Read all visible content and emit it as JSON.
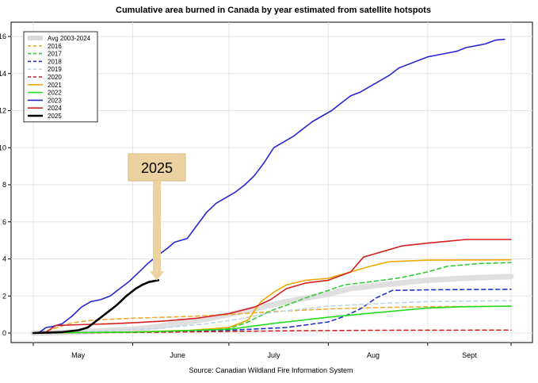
{
  "chart_data": {
    "type": "line",
    "title": "Cumulative area burned in Canada by year estimated from satellite hotspots",
    "source": "Source: Canadian Wildland Fire Information System",
    "xlabel": "",
    "ylabel": "",
    "x_unit": "day of year",
    "xlim": [
      121,
      270
    ],
    "ylim": [
      0,
      16
    ],
    "y_ticks": [
      0,
      2,
      4,
      6,
      8,
      10,
      12,
      14,
      16
    ],
    "y_tick_labels": [
      "0",
      "2",
      "4",
      "6",
      "8",
      "10",
      "12",
      "14",
      "16"
    ],
    "x_grid": [
      121,
      152,
      182,
      213,
      244,
      270
    ],
    "x_labels": [
      {
        "label": "May",
        "x": 135
      },
      {
        "label": "June",
        "x": 166
      },
      {
        "label": "July",
        "x": 196
      },
      {
        "label": "Aug",
        "x": 227
      },
      {
        "label": "Sept",
        "x": 257
      }
    ],
    "grid": true,
    "legend_position": "top-left",
    "annotation": {
      "text": "2025",
      "points_to_x": 160,
      "points_to_y": 3.0
    },
    "series": [
      {
        "name": "Avg 2003-2024",
        "color": "#d9d9d9",
        "style": "solid",
        "width": "thick",
        "x": [
          121,
          135,
          152,
          160,
          175,
          182,
          190,
          200,
          213,
          220,
          230,
          244,
          255,
          270
        ],
        "y": [
          0,
          0.05,
          0.2,
          0.35,
          0.75,
          1.0,
          1.3,
          1.7,
          2.1,
          2.4,
          2.6,
          2.85,
          2.95,
          3.05
        ]
      },
      {
        "name": "2016",
        "color": "#f0a830",
        "style": "dashed",
        "width": "normal",
        "x": [
          121,
          125,
          133,
          140,
          152,
          170,
          182,
          195,
          213,
          230,
          244,
          270
        ],
        "y": [
          0,
          0.1,
          0.55,
          0.7,
          0.8,
          0.9,
          1.0,
          1.15,
          1.3,
          1.38,
          1.42,
          1.45
        ]
      },
      {
        "name": "2017",
        "color": "#33cc33",
        "style": "dashed",
        "width": "normal",
        "x": [
          121,
          160,
          182,
          188,
          195,
          200,
          206,
          213,
          218,
          223,
          230,
          236,
          244,
          250,
          260,
          270
        ],
        "y": [
          0,
          0.05,
          0.25,
          0.6,
          1.2,
          1.5,
          1.9,
          2.3,
          2.6,
          2.7,
          2.85,
          3.0,
          3.3,
          3.6,
          3.75,
          3.8
        ]
      },
      {
        "name": "2018",
        "color": "#2233cc",
        "style": "dashed",
        "width": "normal",
        "x": [
          121,
          152,
          182,
          200,
          213,
          218,
          223,
          228,
          233,
          244,
          256,
          270
        ],
        "y": [
          0,
          0.05,
          0.15,
          0.3,
          0.6,
          0.9,
          1.3,
          1.9,
          2.3,
          2.33,
          2.35,
          2.36
        ]
      },
      {
        "name": "2019",
        "color": "#bfd6e8",
        "style": "dashed",
        "width": "normal",
        "x": [
          121,
          140,
          160,
          175,
          185,
          195,
          205,
          213,
          230,
          244,
          270
        ],
        "y": [
          0,
          0.1,
          0.25,
          0.5,
          0.75,
          1.1,
          1.3,
          1.45,
          1.6,
          1.7,
          1.75
        ]
      },
      {
        "name": "2020",
        "color": "#cc2222",
        "style": "dashed",
        "width": "normal",
        "x": [
          121,
          150,
          180,
          200,
          230,
          270
        ],
        "y": [
          0,
          0.03,
          0.08,
          0.12,
          0.15,
          0.16
        ]
      },
      {
        "name": "2021",
        "color": "#f0a800",
        "style": "solid",
        "width": "normal",
        "x": [
          121,
          150,
          170,
          182,
          188,
          192,
          196,
          200,
          206,
          213,
          220,
          226,
          232,
          244,
          270
        ],
        "y": [
          0,
          0.05,
          0.15,
          0.3,
          0.7,
          1.7,
          2.2,
          2.6,
          2.85,
          2.95,
          3.3,
          3.6,
          3.85,
          3.93,
          3.95
        ]
      },
      {
        "name": "2022",
        "color": "#22dd22",
        "style": "solid",
        "width": "normal",
        "x": [
          121,
          152,
          182,
          195,
          213,
          228,
          244,
          255,
          270
        ],
        "y": [
          0,
          0.05,
          0.2,
          0.5,
          0.85,
          1.1,
          1.35,
          1.42,
          1.45
        ]
      },
      {
        "name": "2023",
        "color": "#2727d0",
        "style": "solid",
        "width": "normal",
        "x": [
          121,
          123,
          125,
          127,
          130,
          133,
          136,
          139,
          142,
          145,
          148,
          151,
          154,
          157,
          160,
          163,
          165,
          167,
          169,
          172,
          175,
          178,
          181,
          184,
          187,
          190,
          193,
          196,
          199,
          202,
          205,
          208,
          211,
          214,
          217,
          220,
          223,
          226,
          229,
          232,
          235,
          238,
          241,
          244,
          247,
          250,
          253,
          256,
          259,
          262,
          265,
          268
        ],
        "y": [
          0,
          0.05,
          0.3,
          0.35,
          0.5,
          0.9,
          1.4,
          1.7,
          1.8,
          2.0,
          2.4,
          2.8,
          3.3,
          3.8,
          4.2,
          4.6,
          4.9,
          5.0,
          5.1,
          5.8,
          6.5,
          7.0,
          7.3,
          7.6,
          8.0,
          8.5,
          9.2,
          10.0,
          10.3,
          10.6,
          11.0,
          11.4,
          11.7,
          12.0,
          12.4,
          12.8,
          13.0,
          13.3,
          13.6,
          13.9,
          14.3,
          14.5,
          14.7,
          14.9,
          15.0,
          15.1,
          15.2,
          15.4,
          15.5,
          15.6,
          15.8,
          15.85
        ]
      },
      {
        "name": "2024",
        "color": "#d62020",
        "style": "solid",
        "width": "normal",
        "x": [
          121,
          125,
          128,
          135,
          145,
          152,
          162,
          172,
          182,
          190,
          195,
          200,
          206,
          213,
          220,
          224,
          228,
          232,
          236,
          244,
          250,
          256,
          270
        ],
        "y": [
          0,
          0.05,
          0.4,
          0.45,
          0.5,
          0.55,
          0.65,
          0.8,
          1.05,
          1.4,
          1.8,
          2.4,
          2.7,
          2.85,
          3.3,
          4.1,
          4.3,
          4.5,
          4.7,
          4.85,
          4.95,
          5.05,
          5.05
        ]
      },
      {
        "name": "2025",
        "color": "#000000",
        "style": "solid",
        "width": "bold",
        "x": [
          121,
          130,
          135,
          138,
          141,
          144,
          147,
          150,
          153,
          155,
          157,
          160
        ],
        "y": [
          0,
          0.05,
          0.15,
          0.3,
          0.7,
          1.1,
          1.5,
          2.0,
          2.4,
          2.6,
          2.75,
          2.85
        ]
      }
    ]
  }
}
